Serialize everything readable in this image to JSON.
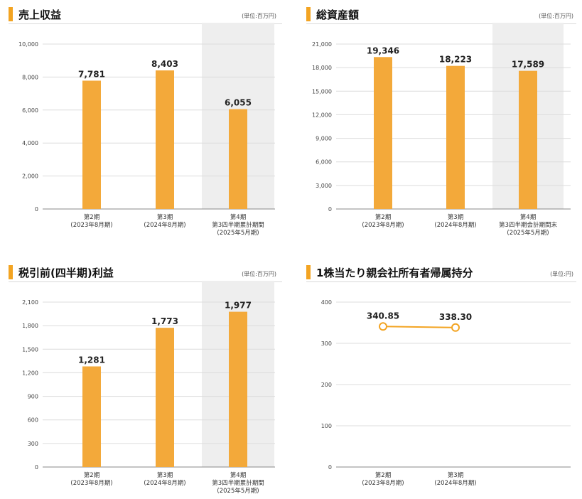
{
  "chart_data": [
    {
      "type": "bar",
      "title": "売上収益",
      "unit": "(単位:百万円)",
      "categories": [
        [
          "第2期",
          "(2023年8月期)"
        ],
        [
          "第3期",
          "(2024年8月期)"
        ],
        [
          "第4期",
          "第3四半期累計期間",
          "(2025年5月期)"
        ]
      ],
      "values": [
        7781,
        8403,
        6055
      ],
      "value_labels": [
        "7,781",
        "8,403",
        "6,055"
      ],
      "ylim": [
        0,
        10000
      ],
      "yticks": [
        0,
        2000,
        4000,
        6000,
        8000,
        10000
      ],
      "ytick_labels": [
        "0",
        "2,000",
        "4,000",
        "6,000",
        "8,000",
        "10,000"
      ],
      "highlight_category": 2,
      "bar_color": "#f3a93a",
      "highlight_bg": "#eeeeee"
    },
    {
      "type": "bar",
      "title": "総資産額",
      "unit": "(単位:百万円)",
      "categories": [
        [
          "第2期",
          "(2023年8月期)"
        ],
        [
          "第3期",
          "(2024年8月期)"
        ],
        [
          "第4期",
          "第3四半期会計期間末",
          "(2025年5月期)"
        ]
      ],
      "values": [
        19346,
        18223,
        17589
      ],
      "value_labels": [
        "19,346",
        "18,223",
        "17,589"
      ],
      "ylim": [
        0,
        21000
      ],
      "yticks": [
        0,
        3000,
        6000,
        9000,
        12000,
        15000,
        18000,
        21000
      ],
      "ytick_labels": [
        "0",
        "3,000",
        "6,000",
        "9,000",
        "12,000",
        "15,000",
        "18,000",
        "21,000"
      ],
      "highlight_category": 2,
      "bar_color": "#f3a93a",
      "highlight_bg": "#eeeeee"
    },
    {
      "type": "bar",
      "title": "税引前(四半期)利益",
      "unit": "(単位:百万円)",
      "categories": [
        [
          "第2期",
          "(2023年8月期)"
        ],
        [
          "第3期",
          "(2024年8月期)"
        ],
        [
          "第4期",
          "第3四半期累計期間",
          "(2025年5月期)"
        ]
      ],
      "values": [
        1281,
        1773,
        1977
      ],
      "value_labels": [
        "1,281",
        "1,773",
        "1,977"
      ],
      "ylim": [
        0,
        2100
      ],
      "yticks": [
        0,
        300,
        600,
        900,
        1200,
        1500,
        1800,
        2100
      ],
      "ytick_labels": [
        "0",
        "300",
        "600",
        "900",
        "1,200",
        "1,500",
        "1,800",
        "2,100"
      ],
      "highlight_category": 2,
      "bar_color": "#f3a93a",
      "highlight_bg": "#eeeeee"
    },
    {
      "type": "line",
      "title": "1株当たり親会社所有者帰属持分",
      "unit": "(単位:円)",
      "categories": [
        [
          "第2期",
          "(2023年8月期)"
        ],
        [
          "第3期",
          "(2024年8月期)"
        ]
      ],
      "values": [
        340.85,
        338.3
      ],
      "value_labels": [
        "340.85",
        "338.30"
      ],
      "ylim": [
        0,
        400
      ],
      "yticks": [
        0,
        100,
        200,
        300,
        400
      ],
      "ytick_labels": [
        "0",
        "100",
        "200",
        "300",
        "400"
      ],
      "line_color": "#f3a422"
    }
  ]
}
